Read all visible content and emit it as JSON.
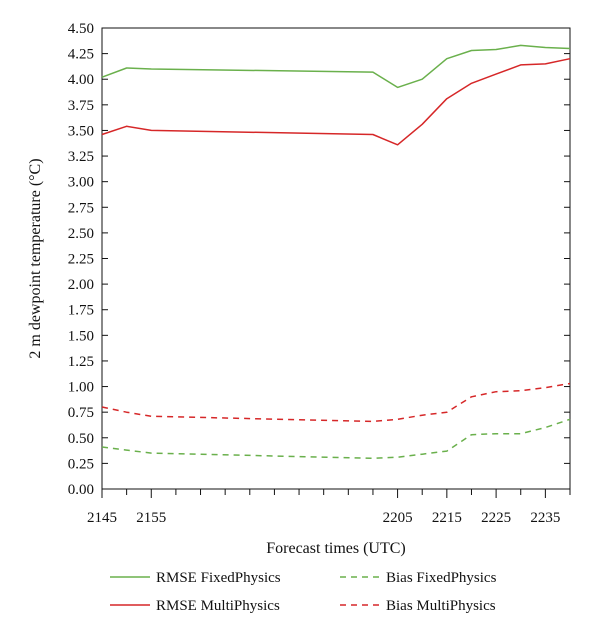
{
  "chart_data": {
    "type": "line",
    "xlabel": "Forecast times (UTC)",
    "ylabel": "2 m dewpoint temperature (°C)",
    "x_ticks": [
      "2145",
      "2155",
      "2205",
      "2215",
      "2225",
      "2235"
    ],
    "xlim": [
      2145,
      2240
    ],
    "ylim": [
      0,
      4.5
    ],
    "y_ticks": [
      "0.00",
      "0.25",
      "0.50",
      "0.75",
      "1.00",
      "1.25",
      "1.50",
      "1.75",
      "2.00",
      "2.25",
      "2.50",
      "2.75",
      "3.00",
      "3.25",
      "3.50",
      "3.75",
      "4.00",
      "4.25",
      "4.50"
    ],
    "x": [
      2145,
      2150,
      2155,
      2200,
      2205,
      2210,
      2215,
      2220,
      2225,
      2230,
      2235,
      2240
    ],
    "grid": false,
    "legend_position": "bottom",
    "series": [
      {
        "name": "RMSE FixedPhysics",
        "color": "#6ab04c",
        "dash": "solid",
        "values": [
          4.02,
          4.11,
          4.1,
          4.07,
          3.92,
          4.0,
          4.2,
          4.28,
          4.29,
          4.33,
          4.31,
          4.3
        ]
      },
      {
        "name": "RMSE MultiPhysics",
        "color": "#d62728",
        "dash": "solid",
        "values": [
          3.46,
          3.54,
          3.5,
          3.46,
          3.36,
          3.56,
          3.81,
          3.96,
          4.05,
          4.14,
          4.15,
          4.2
        ]
      },
      {
        "name": "Bias FixedPhysics",
        "color": "#6ab04c",
        "dash": "dashed",
        "values": [
          0.41,
          0.38,
          0.35,
          0.3,
          0.31,
          0.34,
          0.37,
          0.53,
          0.54,
          0.54,
          0.6,
          0.68
        ]
      },
      {
        "name": "Bias MultiPhysics",
        "color": "#d62728",
        "dash": "dashed",
        "values": [
          0.8,
          0.75,
          0.71,
          0.66,
          0.68,
          0.72,
          0.75,
          0.9,
          0.95,
          0.96,
          0.99,
          1.03
        ]
      }
    ]
  }
}
